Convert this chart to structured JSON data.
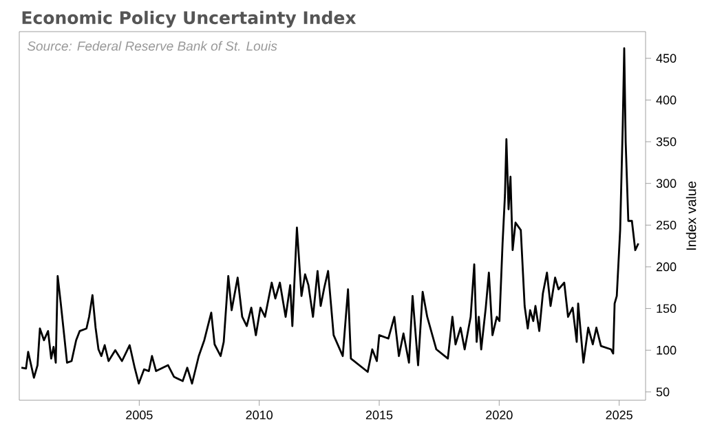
{
  "chart_data": {
    "type": "line",
    "title": "Economic Policy Uncertainty Index",
    "ylabel": "Index value",
    "annotations": [
      "Source: Federal Reserve Bank of St. Louis"
    ],
    "x": [
      2000.09,
      2000.28,
      2000.37,
      2000.61,
      2000.76,
      2000.86,
      2001.03,
      2001.2,
      2001.33,
      2001.43,
      2001.52,
      2001.6,
      2001.73,
      2001.87,
      2001.99,
      2002.18,
      2002.37,
      2002.52,
      2002.8,
      2002.91,
      2003.05,
      2003.18,
      2003.3,
      2003.42,
      2003.56,
      2003.72,
      2004.0,
      2004.28,
      2004.6,
      2004.81,
      2004.98,
      2005.2,
      2005.4,
      2005.53,
      2005.7,
      2005.98,
      2006.2,
      2006.45,
      2006.81,
      2007.0,
      2007.2,
      2007.48,
      2007.71,
      2008.0,
      2008.14,
      2008.39,
      2008.52,
      2008.71,
      2008.85,
      2009.1,
      2009.29,
      2009.48,
      2009.67,
      2009.86,
      2010.05,
      2010.24,
      2010.52,
      2010.67,
      2010.86,
      2011.1,
      2011.29,
      2011.38,
      2011.57,
      2011.76,
      2011.91,
      2012.05,
      2012.24,
      2012.43,
      2012.56,
      2012.71,
      2012.87,
      2013.1,
      2013.48,
      2013.7,
      2013.82,
      2014.52,
      2014.71,
      2014.9,
      2015.0,
      2015.38,
      2015.63,
      2015.82,
      2016.01,
      2016.24,
      2016.39,
      2016.62,
      2016.81,
      2017.0,
      2017.38,
      2017.86,
      2018.05,
      2018.18,
      2018.39,
      2018.56,
      2018.81,
      2018.96,
      2019.06,
      2019.15,
      2019.25,
      2019.44,
      2019.57,
      2019.72,
      2019.9,
      2020.01,
      2020.14,
      2020.24,
      2020.3,
      2020.39,
      2020.47,
      2020.56,
      2020.68,
      2020.9,
      2021.06,
      2021.19,
      2021.29,
      2021.42,
      2021.51,
      2021.67,
      2021.82,
      2021.99,
      2022.14,
      2022.33,
      2022.47,
      2022.71,
      2022.87,
      2023.06,
      2023.23,
      2023.29,
      2023.51,
      2023.71,
      2023.9,
      2024.05,
      2024.24,
      2024.66,
      2024.75,
      2024.81,
      2024.9,
      2025.04,
      2025.15,
      2025.21,
      2025.27,
      2025.38,
      2025.53,
      2025.67,
      2025.8
    ],
    "values": [
      79,
      78,
      98,
      67,
      82,
      126,
      112,
      123,
      90,
      104,
      85,
      189,
      156,
      118,
      85,
      87,
      112,
      123,
      126,
      140,
      166,
      127,
      101,
      93,
      106,
      87,
      100,
      87,
      106,
      79,
      60,
      77,
      75,
      93,
      75,
      79,
      82,
      68,
      63,
      79,
      60,
      93,
      112,
      145,
      107,
      93,
      110,
      189,
      148,
      187,
      140,
      129,
      151,
      118,
      151,
      140,
      181,
      162,
      181,
      140,
      178,
      129,
      247,
      165,
      191,
      178,
      140,
      195,
      153,
      175,
      195,
      118,
      93,
      173,
      90,
      74,
      101,
      87,
      118,
      114,
      140,
      93,
      120,
      85,
      165,
      82,
      170,
      140,
      101,
      90,
      140,
      107,
      127,
      101,
      140,
      203,
      110,
      140,
      101,
      151,
      193,
      118,
      140,
      135,
      228,
      286,
      353,
      269,
      308,
      220,
      253,
      244,
      153,
      126,
      148,
      135,
      153,
      123,
      168,
      193,
      153,
      187,
      173,
      181,
      140,
      151,
      110,
      156,
      85,
      127,
      107,
      127,
      105,
      101,
      96,
      156,
      165,
      244,
      371,
      462,
      350,
      255,
      255,
      220,
      228
    ],
    "color": "#000000",
    "xlim": [
      2000,
      2026.1
    ],
    "ylim": [
      40,
      482
    ],
    "xticks": [
      2005,
      2010,
      2015,
      2020,
      2025
    ],
    "yticks": [
      50,
      100,
      150,
      200,
      250,
      300,
      350,
      400,
      450
    ]
  }
}
